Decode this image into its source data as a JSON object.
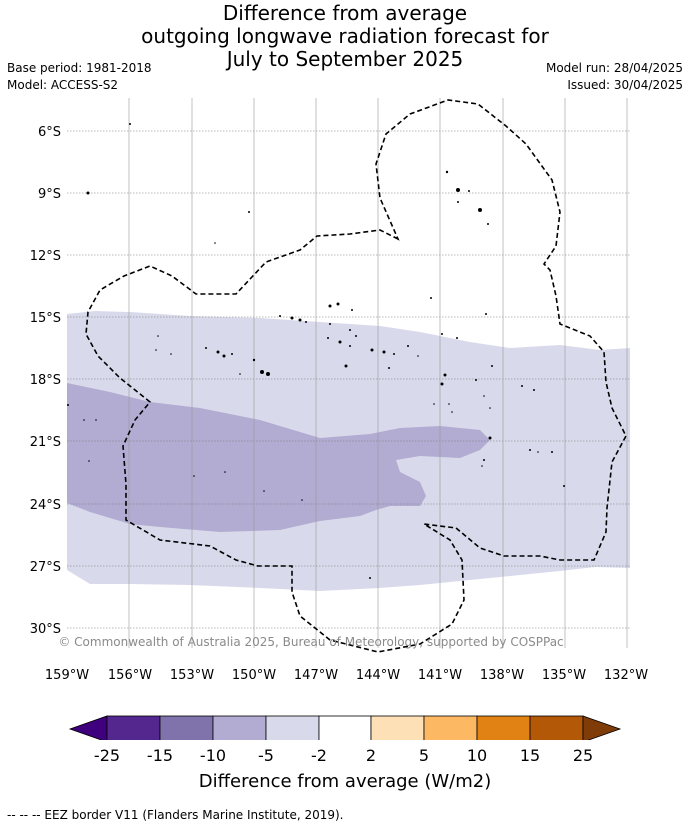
{
  "header": {
    "title_lines": [
      "Difference from average",
      "outgoing longwave radiation forecast for",
      "July to September 2025"
    ],
    "base_period": "Base period: 1981-2018",
    "model": "Model: ACCESS-S2",
    "model_run": "Model run: 28/04/2025",
    "issued": "Issued: 30/04/2025"
  },
  "map": {
    "lat_labels": [
      "6°S",
      "9°S",
      "12°S",
      "15°S",
      "18°S",
      "21°S",
      "24°S",
      "27°S",
      "30°S"
    ],
    "lon_labels": [
      "159°W",
      "156°W",
      "153°W",
      "150°W",
      "147°W",
      "144°W",
      "141°W",
      "138°W",
      "135°W",
      "132°W"
    ],
    "copyright": "© Commonwealth of Australia 2025, Bureau of Meteorology, supported by COSPPac"
  },
  "colorbar": {
    "label": "Difference from average (W/m2)",
    "ticks": [
      "-25",
      "-15",
      "-10",
      "-5",
      "-2",
      "2",
      "5",
      "10",
      "15",
      "25"
    ],
    "colors": [
      "#3f007d",
      "#54278f",
      "#8073ac",
      "#b2abd2",
      "#d8daeb",
      "#ffffff",
      "#fee0b6",
      "#fdb863",
      "#e08214",
      "#b35806",
      "#7f3b08"
    ]
  },
  "footnote": "-- -- -- EEZ border V11 (Flanders Marine Institute, 2019)."
}
